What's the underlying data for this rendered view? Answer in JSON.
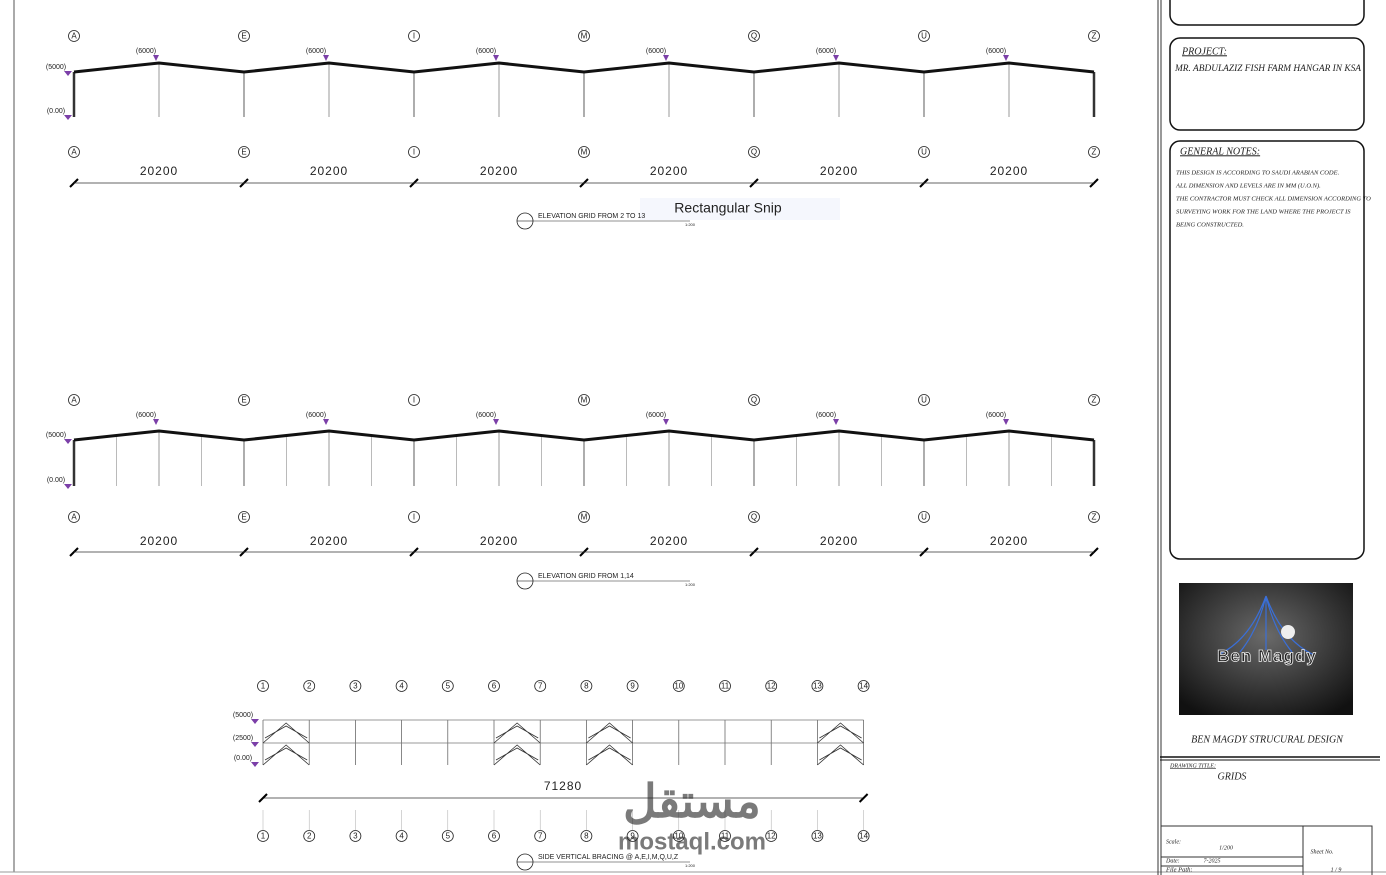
{
  "elevations": [
    {
      "grid_labels": [
        "A",
        "E",
        "I",
        "M",
        "Q",
        "U",
        "Z"
      ],
      "peak_labels": [
        "(6000)",
        "(6000)",
        "(6000)",
        "(6000)",
        "(6000)",
        "(6000)"
      ],
      "level_labels": [
        "(5000)",
        "(0.00)"
      ],
      "dimensions": [
        "20200",
        "20200",
        "20200",
        "20200",
        "20200",
        "20200"
      ],
      "title": "ELEVATION GRID FROM 2 TO 13",
      "scale": "1:200"
    },
    {
      "grid_labels": [
        "A",
        "E",
        "I",
        "M",
        "Q",
        "U",
        "Z"
      ],
      "peak_labels": [
        "(6000)",
        "(6000)",
        "(6000)",
        "(6000)",
        "(6000)",
        "(6000)"
      ],
      "level_labels": [
        "(5000)",
        "(0.00)"
      ],
      "dimensions": [
        "20200",
        "20200",
        "20200",
        "20200",
        "20200",
        "20200"
      ],
      "title": "ELEVATION GRID FROM 1,14",
      "scale": "1:200"
    }
  ],
  "bracing": {
    "grid_labels": [
      "1",
      "2",
      "3",
      "4",
      "5",
      "6",
      "7",
      "8",
      "9",
      "10",
      "11",
      "12",
      "13",
      "14"
    ],
    "level_labels": [
      "(5000)",
      "(2500)",
      "(0.00)"
    ],
    "dimension": "71280",
    "title": "SIDE VERTICAL BRACING @ A,E,I,M,Q,U,Z",
    "scale": "1:200"
  },
  "overlay": {
    "snip": "Rectangular Snip",
    "watermark": "مستقل",
    "watermark_url": "mostaql.com"
  },
  "title_block": {
    "project_heading": "PROJECT:",
    "project": "MR. ABDULAZIZ FISH FARM HANGAR IN KSA",
    "notes_heading": "GENERAL NOTES:",
    "notes": [
      "THIS DESIGN IS ACCORDING TO SAUDI ARABIAN CODE.",
      "ALL DIMENSION AND LEVELS ARE IN MM (U.O.N).",
      "THE CONTRACTOR MUST CHECK ALL DIMENSION ACCORDING TO",
      "SURVEYING WORK FOR THE LAND WHERE THE PROJECT IS",
      "BEING CONSTRUCTED."
    ],
    "logo": "Ben Magdy",
    "company": "BEN MAGDY STRUCURAL DESIGN",
    "drawing_title_label": "DRAWING TITLE:",
    "drawing_title": "GRIDS",
    "scale_label": "Scale:",
    "scale": "1/200",
    "date_label": "Date:",
    "date": "7-2025",
    "file_path_label": "File Path:",
    "sheet_label": "Sheet No.",
    "sheet": "1 / 9"
  }
}
